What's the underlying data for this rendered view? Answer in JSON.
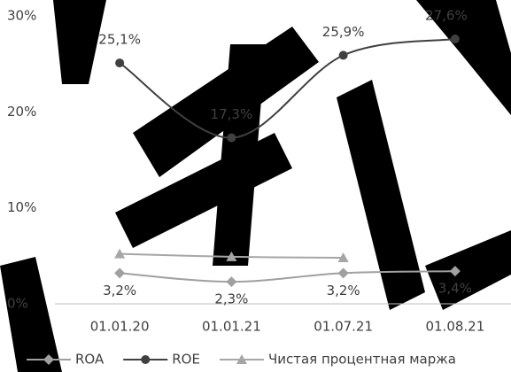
{
  "chart_data": {
    "type": "line",
    "categories": [
      "01.01.20",
      "01.01.21",
      "01.07.21",
      "01.08.21"
    ],
    "series": [
      {
        "name": "ROA",
        "color": "#a0a0a0",
        "marker": "diamond",
        "values": [
          3.2,
          2.3,
          3.2,
          3.4
        ],
        "value_labels": [
          "3,2%",
          "2,3%",
          "3,2%",
          "3,4%"
        ]
      },
      {
        "name": "ROE",
        "color": "#404040",
        "marker": "circle",
        "values": [
          25.1,
          17.3,
          25.9,
          27.6
        ],
        "value_labels": [
          "25,1%",
          "17,3%",
          "25,9%",
          "27,6%"
        ]
      },
      {
        "name": "Чистая процентная маржа",
        "color": "#a6a6a6",
        "marker": "triangle",
        "values": [
          5.2,
          4.9,
          4.8,
          null
        ]
      }
    ],
    "ylim": [
      0,
      30
    ],
    "yticks": [
      {
        "value": 0,
        "label": "0%"
      },
      {
        "value": 10,
        "label": "10%"
      },
      {
        "value": 20,
        "label": "20%"
      },
      {
        "value": 30,
        "label": "30%"
      }
    ],
    "smooth": true
  }
}
